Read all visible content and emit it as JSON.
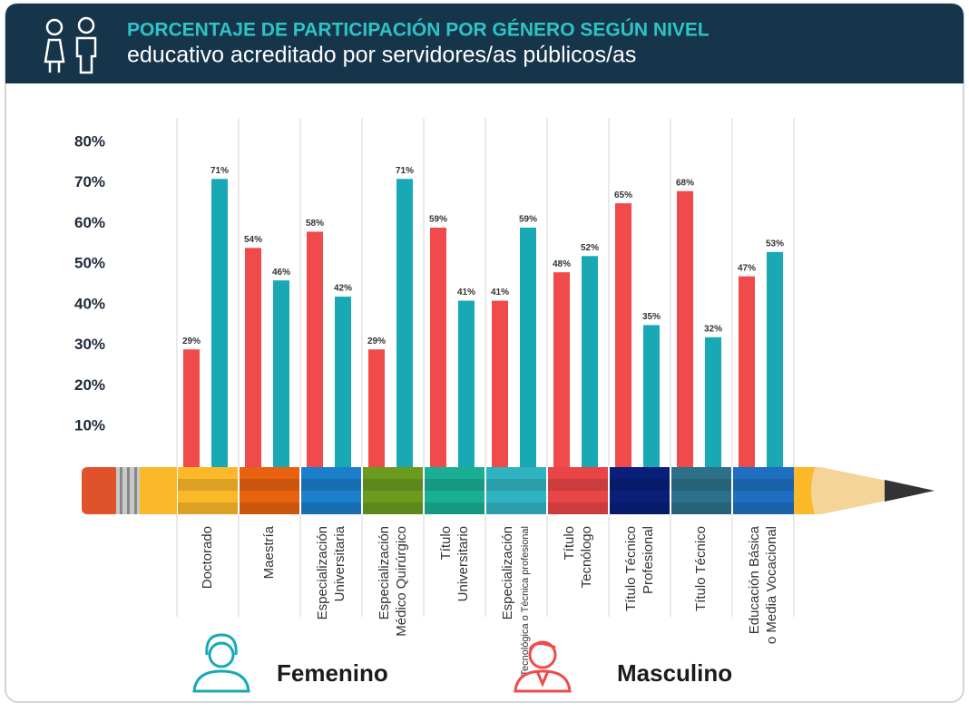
{
  "chart_data": {
    "type": "bar",
    "title": "PORCENTAJE DE PARTICIPACIÓN POR GÉNERO SEGÚN NIVEL",
    "subtitle": "educativo acreditado por servidores/as públicos/as",
    "categories": [
      "Doctorado",
      "Maestría",
      "Especialización\nUniversitaria",
      "Especialización\nMédico Quirúrgico",
      "Título\nUniversitario",
      "Especialización\nTecnológica o Técnica profesional",
      "Título\nTecnólogo",
      "Título Técnico\nProfesional",
      "Título Técnico",
      "Educación Básica\no Media Vocacional"
    ],
    "series": [
      {
        "name": "Femenino",
        "color": "#19a9b5",
        "values": [
          71,
          46,
          42,
          71,
          41,
          59,
          52,
          35,
          32,
          53
        ],
        "value_labels": [
          "71%",
          "46%",
          "42%",
          "71%",
          "41%",
          "59%",
          "52%",
          "35%",
          "32%",
          "53%"
        ]
      },
      {
        "name": "Masculino",
        "color": "#f04a4a",
        "values": [
          29,
          54,
          58,
          29,
          59,
          41,
          48,
          65,
          68,
          47
        ],
        "value_labels": [
          "29%",
          "54%",
          "58%",
          "29%",
          "59%",
          "41%",
          "48%",
          "65%",
          "68%",
          "47%"
        ]
      }
    ],
    "ylim": [
      0,
      80
    ],
    "yticks": [
      {
        "value": 10,
        "label": "10%"
      },
      {
        "value": 20,
        "label": "20%"
      },
      {
        "value": 30,
        "label": "30%"
      },
      {
        "value": 40,
        "label": "40%"
      },
      {
        "value": 50,
        "label": "50%"
      },
      {
        "value": 60,
        "label": "60%"
      },
      {
        "value": 70,
        "label": "70%"
      },
      {
        "value": 80,
        "label": "80%"
      }
    ],
    "grid": true
  }
}
